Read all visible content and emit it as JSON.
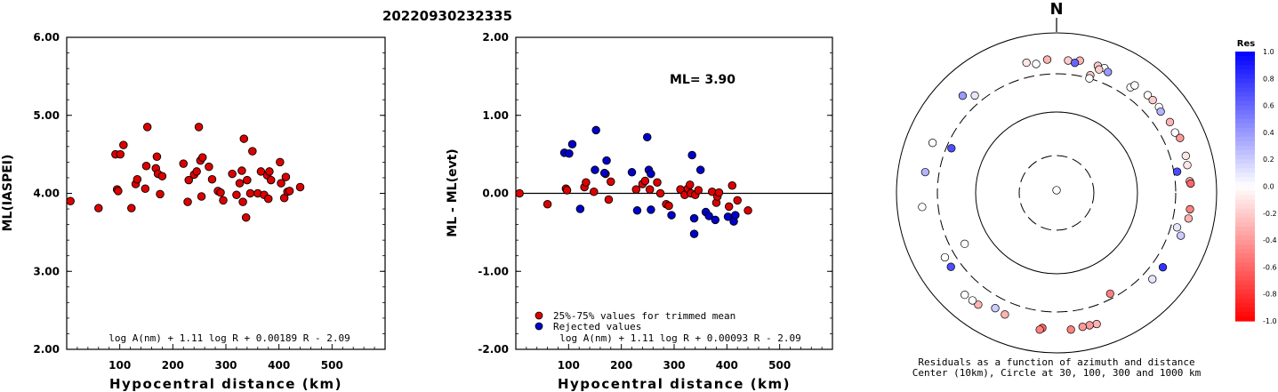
{
  "page_title": "20220930232335",
  "colors": {
    "accepted": "#dd0000",
    "rejected": "#0000cc",
    "axis": "#000000"
  },
  "chart_data": [
    {
      "type": "scatter",
      "title": "",
      "xlabel": "Hypocentral distance (km)",
      "ylabel": "ML(IASPEI)",
      "xlim": [
        0,
        600
      ],
      "ylim": [
        2.0,
        6.0
      ],
      "x_ticks": [
        "100",
        "200",
        "300",
        "400",
        "500"
      ],
      "y_ticks": [
        "2.00",
        "3.00",
        "4.00",
        "5.00",
        "6.00"
      ],
      "formula": "log A(nm) + 1.11 log R + 0.00189 R - 2.09",
      "series": [
        {
          "points": [
            {
              "x": 7,
              "y": 3.9
            },
            {
              "x": 60,
              "y": 3.81
            },
            {
              "x": 92,
              "y": 4.5
            },
            {
              "x": 95,
              "y": 4.05
            },
            {
              "x": 97,
              "y": 4.03
            },
            {
              "x": 101,
              "y": 4.5
            },
            {
              "x": 107,
              "y": 4.62
            },
            {
              "x": 122,
              "y": 3.81
            },
            {
              "x": 130,
              "y": 4.12
            },
            {
              "x": 133,
              "y": 4.18
            },
            {
              "x": 148,
              "y": 4.06
            },
            {
              "x": 150,
              "y": 4.35
            },
            {
              "x": 152,
              "y": 4.85
            },
            {
              "x": 168,
              "y": 4.32
            },
            {
              "x": 170,
              "y": 4.47
            },
            {
              "x": 172,
              "y": 4.25
            },
            {
              "x": 176,
              "y": 3.99
            },
            {
              "x": 180,
              "y": 4.22
            },
            {
              "x": 220,
              "y": 4.38
            },
            {
              "x": 228,
              "y": 3.89
            },
            {
              "x": 230,
              "y": 4.17
            },
            {
              "x": 240,
              "y": 4.24
            },
            {
              "x": 245,
              "y": 4.28
            },
            {
              "x": 249,
              "y": 4.85
            },
            {
              "x": 252,
              "y": 4.42
            },
            {
              "x": 254,
              "y": 3.96
            },
            {
              "x": 256,
              "y": 4.46
            },
            {
              "x": 268,
              "y": 4.34
            },
            {
              "x": 274,
              "y": 4.18
            },
            {
              "x": 285,
              "y": 4.03
            },
            {
              "x": 290,
              "y": 4.01
            },
            {
              "x": 295,
              "y": 3.91
            },
            {
              "x": 312,
              "y": 4.25
            },
            {
              "x": 320,
              "y": 3.98
            },
            {
              "x": 326,
              "y": 4.13
            },
            {
              "x": 330,
              "y": 4.29
            },
            {
              "x": 332,
              "y": 3.89
            },
            {
              "x": 334,
              "y": 4.7
            },
            {
              "x": 338,
              "y": 3.69
            },
            {
              "x": 340,
              "y": 4.17
            },
            {
              "x": 346,
              "y": 4.0
            },
            {
              "x": 350,
              "y": 4.54
            },
            {
              "x": 360,
              "y": 4.0
            },
            {
              "x": 366,
              "y": 4.28
            },
            {
              "x": 372,
              "y": 3.98
            },
            {
              "x": 378,
              "y": 4.23
            },
            {
              "x": 380,
              "y": 3.93
            },
            {
              "x": 382,
              "y": 4.28
            },
            {
              "x": 385,
              "y": 4.17
            },
            {
              "x": 402,
              "y": 4.4
            },
            {
              "x": 404,
              "y": 4.13
            },
            {
              "x": 410,
              "y": 3.94
            },
            {
              "x": 413,
              "y": 4.21
            },
            {
              "x": 416,
              "y": 4.02
            },
            {
              "x": 420,
              "y": 4.03
            },
            {
              "x": 440,
              "y": 4.08
            }
          ]
        }
      ]
    },
    {
      "type": "scatter",
      "title": "",
      "xlabel": "Hypocentral distance (km)",
      "ylabel": "ML - ML(evt)",
      "xlim": [
        0,
        600
      ],
      "ylim": [
        -2.0,
        2.0
      ],
      "x_ticks": [
        "100",
        "200",
        "300",
        "400",
        "500"
      ],
      "y_ticks": [
        "-2.00",
        "-1.00",
        "0.00",
        "1.00",
        "2.00"
      ],
      "ml_label": "ML= 3.90",
      "formula": "log A(nm) + 1.11 log R + 0.00093 R - 2.09",
      "reference_line_y": 0.0,
      "legend": [
        "25%-75% values for trimmed mean",
        "Rejected values"
      ],
      "series": [
        {
          "name": "25%-75% values for trimmed mean",
          "points": [
            {
              "x": 7,
              "y": 0.0
            },
            {
              "x": 60,
              "y": -0.14
            },
            {
              "x": 95,
              "y": 0.06
            },
            {
              "x": 97,
              "y": 0.04
            },
            {
              "x": 130,
              "y": 0.08
            },
            {
              "x": 133,
              "y": 0.14
            },
            {
              "x": 148,
              "y": 0.02
            },
            {
              "x": 170,
              "y": 0.25
            },
            {
              "x": 176,
              "y": -0.08
            },
            {
              "x": 180,
              "y": 0.15
            },
            {
              "x": 228,
              "y": 0.05
            },
            {
              "x": 240,
              "y": 0.12
            },
            {
              "x": 245,
              "y": 0.16
            },
            {
              "x": 254,
              "y": 0.05
            },
            {
              "x": 268,
              "y": 0.14
            },
            {
              "x": 274,
              "y": 0.0
            },
            {
              "x": 285,
              "y": -0.14
            },
            {
              "x": 290,
              "y": -0.16
            },
            {
              "x": 312,
              "y": 0.05
            },
            {
              "x": 320,
              "y": -0.02
            },
            {
              "x": 326,
              "y": 0.06
            },
            {
              "x": 330,
              "y": 0.11
            },
            {
              "x": 332,
              "y": 0.0
            },
            {
              "x": 340,
              "y": -0.02
            },
            {
              "x": 346,
              "y": 0.04
            },
            {
              "x": 372,
              "y": 0.02
            },
            {
              "x": 380,
              "y": -0.12
            },
            {
              "x": 382,
              "y": -0.04
            },
            {
              "x": 385,
              "y": 0.01
            },
            {
              "x": 404,
              "y": -0.17
            },
            {
              "x": 410,
              "y": 0.1
            },
            {
              "x": 420,
              "y": -0.09
            },
            {
              "x": 440,
              "y": -0.22
            }
          ]
        },
        {
          "name": "Rejected values",
          "points": [
            {
              "x": 92,
              "y": 0.52
            },
            {
              "x": 101,
              "y": 0.51
            },
            {
              "x": 107,
              "y": 0.63
            },
            {
              "x": 122,
              "y": -0.2
            },
            {
              "x": 150,
              "y": 0.3
            },
            {
              "x": 152,
              "y": 0.81
            },
            {
              "x": 168,
              "y": 0.26
            },
            {
              "x": 172,
              "y": 0.42
            },
            {
              "x": 220,
              "y": 0.27
            },
            {
              "x": 230,
              "y": -0.22
            },
            {
              "x": 249,
              "y": 0.72
            },
            {
              "x": 252,
              "y": 0.3
            },
            {
              "x": 256,
              "y": 0.25
            },
            {
              "x": 256,
              "y": -0.21
            },
            {
              "x": 295,
              "y": -0.28
            },
            {
              "x": 334,
              "y": 0.49
            },
            {
              "x": 338,
              "y": -0.32
            },
            {
              "x": 338,
              "y": -0.52
            },
            {
              "x": 350,
              "y": 0.3
            },
            {
              "x": 360,
              "y": -0.24
            },
            {
              "x": 366,
              "y": -0.29
            },
            {
              "x": 378,
              "y": -0.34
            },
            {
              "x": 402,
              "y": -0.3
            },
            {
              "x": 413,
              "y": -0.36
            },
            {
              "x": 416,
              "y": -0.28
            }
          ]
        }
      ]
    },
    {
      "type": "scatter",
      "title": "",
      "north_label": "N",
      "caption_line1": "Residuals as a function of azimuth and distance",
      "caption_line2": "Center (10km), Circle at 30, 100, 300 and 1000 km",
      "rings_km": [
        30,
        100,
        300,
        1000
      ],
      "colorbar_title": "Res",
      "colorbar_ticks": [
        "1.0",
        "0.8",
        "0.6",
        "0.4",
        "0.2",
        "0.0",
        "-0.2",
        "-0.4",
        "-0.6",
        "-0.8",
        "-1.0"
      ],
      "stations": [
        {
          "az": 0,
          "dist": 10,
          "res": 0.0
        },
        {
          "az": -13,
          "dist": 460,
          "res": -0.1
        },
        {
          "az": -4,
          "dist": 460,
          "res": -0.3
        },
        {
          "az": -9,
          "dist": 420,
          "res": 0.0
        },
        {
          "az": 5,
          "dist": 450,
          "res": -0.2
        },
        {
          "az": 10,
          "dist": 470,
          "res": -0.3
        },
        {
          "az": 8,
          "dist": 430,
          "res": 0.6
        },
        {
          "az": 18,
          "dist": 460,
          "res": -0.2
        },
        {
          "az": 21,
          "dist": 460,
          "res": 0.0
        },
        {
          "az": 19,
          "dist": 420,
          "res": -0.2
        },
        {
          "az": 23,
          "dist": 430,
          "res": 0.4
        },
        {
          "az": 16,
          "dist": 330,
          "res": -0.2
        },
        {
          "az": 16,
          "dist": 300,
          "res": 0.0
        },
        {
          "az": 35,
          "dist": 400,
          "res": 0.0
        },
        {
          "az": 36,
          "dist": 450,
          "res": 0.0
        },
        {
          "az": 43,
          "dist": 460,
          "res": 0.0
        },
        {
          "az": 46,
          "dist": 460,
          "res": -0.2
        },
        {
          "az": 50,
          "dist": 460,
          "res": 0.0
        },
        {
          "az": 52,
          "dist": 440,
          "res": 0.3
        },
        {
          "az": 58,
          "dist": 460,
          "res": -0.3
        },
        {
          "az": 63,
          "dist": 450,
          "res": 0.0
        },
        {
          "az": 66,
          "dist": 480,
          "res": -0.4
        },
        {
          "az": 74,
          "dist": 470,
          "res": -0.1
        },
        {
          "az": 78,
          "dist": 460,
          "res": -0.1
        },
        {
          "az": 85,
          "dist": 460,
          "res": -0.3
        },
        {
          "az": 86,
          "dist": 470,
          "res": -0.6
        },
        {
          "az": 80,
          "dist": 330,
          "res": 0.7
        },
        {
          "az": 97,
          "dist": 470,
          "res": -0.5
        },
        {
          "az": 101,
          "dist": 470,
          "res": -0.3
        },
        {
          "az": 106,
          "dist": 360,
          "res": 0.1
        },
        {
          "az": 109,
          "dist": 430,
          "res": 0.2
        },
        {
          "az": 125,
          "dist": 410,
          "res": 0.8
        },
        {
          "az": 132,
          "dist": 400,
          "res": 0.1
        },
        {
          "az": 152,
          "dist": 260,
          "res": -0.5
        },
        {
          "az": 163,
          "dist": 510,
          "res": -0.3
        },
        {
          "az": 166,
          "dist": 500,
          "res": -0.4
        },
        {
          "az": 169,
          "dist": 500,
          "res": -0.4
        },
        {
          "az": 174,
          "dist": 515,
          "res": -0.5
        },
        {
          "az": 186,
          "dist": 490,
          "res": -0.6
        },
        {
          "az": 187,
          "dist": 520,
          "res": -0.5
        },
        {
          "az": 203,
          "dist": 440,
          "res": -0.3
        },
        {
          "az": 208,
          "dist": 420,
          "res": 0.2
        },
        {
          "az": 215,
          "dist": 500,
          "res": -0.3
        },
        {
          "az": 218,
          "dist": 500,
          "res": 0.0
        },
        {
          "az": 222,
          "dist": 510,
          "res": 0.0
        },
        {
          "az": 235,
          "dist": 400,
          "res": 0.7
        },
        {
          "az": 240,
          "dist": 400,
          "res": 0.0
        },
        {
          "az": 241,
          "dist": 200,
          "res": 0.0
        },
        {
          "az": 264,
          "dist": 480,
          "res": 0.0
        },
        {
          "az": 279,
          "dist": 450,
          "res": 0.3
        },
        {
          "az": 292,
          "dist": 460,
          "res": 0.0
        },
        {
          "az": 293,
          "dist": 260,
          "res": 0.7
        },
        {
          "az": 316,
          "dist": 480,
          "res": 0.4
        },
        {
          "az": 320,
          "dist": 380,
          "res": 0.1
        }
      ]
    }
  ]
}
